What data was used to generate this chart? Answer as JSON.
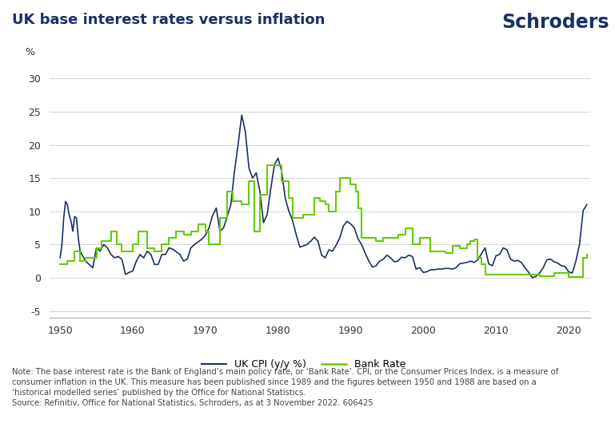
{
  "title": "UK base interest rates versus inflation",
  "schroders_text": "Schroders",
  "ylabel": "%",
  "ylim": [
    -6,
    32
  ],
  "yticks": [
    -5,
    0,
    5,
    10,
    15,
    20,
    25,
    30
  ],
  "xlim": [
    1948.5,
    2023.0
  ],
  "xticks": [
    1950,
    1960,
    1970,
    1980,
    1990,
    2000,
    2010,
    2020
  ],
  "cpi_color": "#1a3066",
  "bank_color": "#66cc00",
  "background_color": "#ffffff",
  "legend_cpi": "UK CPI (y/y %)",
  "legend_bank": "Bank Rate",
  "note_text": "Note: The base interest rate is the Bank of England’s main policy rate, or ‘Bank Rate’. CPI, or the Consumer Prices Index, is a measure of\nconsumer inflation in the UK. This measure has been published since 1989 and the figures between 1950 and 1988 are based on a\n‘historical modelled series’ published by the Office for National Statistics.\nSource: Refinitiv, Office for National Statistics, Schroders, as at 3 November 2022. 606425",
  "cpi_x": [
    1950.0,
    1950.25,
    1950.5,
    1950.75,
    1951.0,
    1951.25,
    1951.5,
    1951.75,
    1952.0,
    1952.25,
    1952.5,
    1952.75,
    1953.0,
    1953.5,
    1954.0,
    1954.5,
    1955.0,
    1955.5,
    1956.0,
    1956.5,
    1957.0,
    1957.5,
    1958.0,
    1958.5,
    1959.0,
    1959.5,
    1960.0,
    1960.5,
    1961.0,
    1961.5,
    1962.0,
    1962.5,
    1963.0,
    1963.5,
    1964.0,
    1964.5,
    1965.0,
    1965.5,
    1966.0,
    1966.5,
    1967.0,
    1967.5,
    1968.0,
    1968.5,
    1969.0,
    1969.5,
    1970.0,
    1970.5,
    1971.0,
    1971.5,
    1972.0,
    1972.5,
    1973.0,
    1973.5,
    1974.0,
    1974.5,
    1975.0,
    1975.5,
    1976.0,
    1976.5,
    1977.0,
    1977.5,
    1978.0,
    1978.5,
    1979.0,
    1979.5,
    1980.0,
    1980.5,
    1981.0,
    1981.5,
    1982.0,
    1982.5,
    1983.0,
    1983.5,
    1984.0,
    1984.5,
    1985.0,
    1985.5,
    1986.0,
    1986.5,
    1987.0,
    1987.5,
    1988.0,
    1988.5,
    1989.0,
    1989.5,
    1990.0,
    1990.5,
    1991.0,
    1991.5,
    1992.0,
    1992.5,
    1993.0,
    1993.5,
    1994.0,
    1994.5,
    1995.0,
    1995.5,
    1996.0,
    1996.5,
    1997.0,
    1997.5,
    1998.0,
    1998.5,
    1999.0,
    1999.5,
    2000.0,
    2000.5,
    2001.0,
    2001.5,
    2002.0,
    2002.5,
    2003.0,
    2003.5,
    2004.0,
    2004.5,
    2005.0,
    2005.5,
    2006.0,
    2006.5,
    2007.0,
    2007.5,
    2008.0,
    2008.5,
    2009.0,
    2009.5,
    2010.0,
    2010.5,
    2011.0,
    2011.5,
    2012.0,
    2012.5,
    2013.0,
    2013.5,
    2014.0,
    2014.5,
    2015.0,
    2015.5,
    2016.0,
    2016.5,
    2017.0,
    2017.5,
    2018.0,
    2018.5,
    2019.0,
    2019.5,
    2020.0,
    2020.5,
    2021.0,
    2021.5,
    2022.0,
    2022.5
  ],
  "cpi_y": [
    3.0,
    5.0,
    9.0,
    11.5,
    11.0,
    9.5,
    8.5,
    7.0,
    9.2,
    9.0,
    6.0,
    4.0,
    3.5,
    2.5,
    2.0,
    1.5,
    4.5,
    4.0,
    5.0,
    4.5,
    3.5,
    3.0,
    3.2,
    2.8,
    0.5,
    0.8,
    1.0,
    2.5,
    3.5,
    3.0,
    4.0,
    3.5,
    2.0,
    2.0,
    3.5,
    3.5,
    4.5,
    4.3,
    3.9,
    3.5,
    2.5,
    2.8,
    4.5,
    5.0,
    5.4,
    5.8,
    6.4,
    7.5,
    9.4,
    10.5,
    7.0,
    7.5,
    9.2,
    11.0,
    16.0,
    20.0,
    24.5,
    22.0,
    16.5,
    15.0,
    15.8,
    13.0,
    8.3,
    9.5,
    13.4,
    17.0,
    18.0,
    16.0,
    11.9,
    10.0,
    8.6,
    6.5,
    4.6,
    4.8,
    5.0,
    5.5,
    6.1,
    5.5,
    3.4,
    3.0,
    4.2,
    4.0,
    4.9,
    6.0,
    7.8,
    8.5,
    8.1,
    7.5,
    5.9,
    5.0,
    3.7,
    2.5,
    1.6,
    1.8,
    2.5,
    2.8,
    3.4,
    3.0,
    2.4,
    2.5,
    3.1,
    3.0,
    3.4,
    3.2,
    1.3,
    1.5,
    0.8,
    0.9,
    1.2,
    1.2,
    1.3,
    1.3,
    1.4,
    1.4,
    1.3,
    1.5,
    2.1,
    2.2,
    2.3,
    2.5,
    2.3,
    2.7,
    3.6,
    4.5,
    2.1,
    1.8,
    3.3,
    3.5,
    4.5,
    4.2,
    2.8,
    2.5,
    2.6,
    2.3,
    1.5,
    0.8,
    0.0,
    0.2,
    0.7,
    1.5,
    2.7,
    2.8,
    2.4,
    2.2,
    1.8,
    1.7,
    0.9,
    0.7,
    2.5,
    5.0,
    10.1,
    11.0
  ],
  "bank_x": [
    1950.0,
    1950.5,
    1951.0,
    1951.5,
    1952.0,
    1952.25,
    1952.75,
    1953.0,
    1953.5,
    1954.0,
    1954.5,
    1955.0,
    1955.25,
    1955.75,
    1956.0,
    1956.5,
    1957.0,
    1957.25,
    1957.75,
    1958.0,
    1958.5,
    1959.0,
    1959.5,
    1960.0,
    1960.25,
    1960.75,
    1961.0,
    1961.5,
    1962.0,
    1962.5,
    1963.0,
    1963.5,
    1964.0,
    1964.5,
    1965.0,
    1965.5,
    1966.0,
    1966.5,
    1967.0,
    1967.5,
    1968.0,
    1968.5,
    1969.0,
    1969.5,
    1970.0,
    1970.5,
    1971.0,
    1971.5,
    1972.0,
    1972.5,
    1973.0,
    1973.25,
    1973.75,
    1974.0,
    1974.5,
    1975.0,
    1975.5,
    1976.0,
    1976.25,
    1976.75,
    1977.0,
    1977.5,
    1978.0,
    1978.5,
    1979.0,
    1979.25,
    1979.75,
    1980.0,
    1980.5,
    1981.0,
    1981.5,
    1982.0,
    1982.5,
    1983.0,
    1983.5,
    1984.0,
    1984.5,
    1985.0,
    1985.25,
    1985.75,
    1986.0,
    1986.5,
    1987.0,
    1987.5,
    1988.0,
    1988.5,
    1989.0,
    1989.25,
    1989.75,
    1990.0,
    1990.25,
    1990.75,
    1991.0,
    1991.5,
    1992.0,
    1992.5,
    1993.0,
    1993.5,
    1994.0,
    1994.5,
    1995.0,
    1995.5,
    1996.0,
    1996.5,
    1997.0,
    1997.5,
    1998.0,
    1998.5,
    1999.0,
    1999.5,
    2000.0,
    2000.5,
    2001.0,
    2001.5,
    2002.0,
    2002.5,
    2003.0,
    2003.5,
    2004.0,
    2004.5,
    2005.0,
    2005.5,
    2006.0,
    2006.5,
    2007.0,
    2007.5,
    2008.0,
    2008.5,
    2009.0,
    2009.5,
    2010.0,
    2010.5,
    2011.0,
    2011.5,
    2012.0,
    2012.5,
    2013.0,
    2013.5,
    2014.0,
    2014.5,
    2015.0,
    2015.5,
    2016.0,
    2016.5,
    2017.0,
    2017.5,
    2018.0,
    2018.5,
    2019.0,
    2019.5,
    2020.0,
    2020.5,
    2021.0,
    2021.5,
    2022.0,
    2022.5
  ],
  "bank_y": [
    2.0,
    2.0,
    2.5,
    2.5,
    4.0,
    4.0,
    2.5,
    2.5,
    3.0,
    3.0,
    3.0,
    4.5,
    4.5,
    5.5,
    5.5,
    5.5,
    7.0,
    7.0,
    5.0,
    5.0,
    4.0,
    4.0,
    4.0,
    5.0,
    5.0,
    7.0,
    7.0,
    7.0,
    4.5,
    4.5,
    4.0,
    4.0,
    5.0,
    5.0,
    6.0,
    6.0,
    7.0,
    7.0,
    6.5,
    6.5,
    7.0,
    7.0,
    8.0,
    8.0,
    7.0,
    5.0,
    5.0,
    5.0,
    9.0,
    9.0,
    13.0,
    13.0,
    11.5,
    11.5,
    11.5,
    11.0,
    11.0,
    14.5,
    14.5,
    7.0,
    7.0,
    12.5,
    12.5,
    17.0,
    17.0,
    17.0,
    17.0,
    17.0,
    14.5,
    14.5,
    12.0,
    9.0,
    9.0,
    9.0,
    9.5,
    9.5,
    9.5,
    12.0,
    12.0,
    11.5,
    11.5,
    11.0,
    10.0,
    10.0,
    13.0,
    15.0,
    15.0,
    15.0,
    15.0,
    14.0,
    14.0,
    13.0,
    10.5,
    6.0,
    6.0,
    6.0,
    6.0,
    5.5,
    5.5,
    6.0,
    6.0,
    6.0,
    6.0,
    6.5,
    6.5,
    7.5,
    7.5,
    5.0,
    5.0,
    6.0,
    6.0,
    6.0,
    4.0,
    4.0,
    4.0,
    4.0,
    3.75,
    3.75,
    4.75,
    4.75,
    4.5,
    4.5,
    5.0,
    5.5,
    5.75,
    3.0,
    2.0,
    0.5,
    0.5,
    0.5,
    0.5,
    0.5,
    0.5,
    0.5,
    0.5,
    0.5,
    0.5,
    0.5,
    0.5,
    0.5,
    0.5,
    0.5,
    0.25,
    0.25,
    0.25,
    0.25,
    0.75,
    0.75,
    0.75,
    0.75,
    0.1,
    0.1,
    0.1,
    0.1,
    3.0,
    3.5
  ]
}
